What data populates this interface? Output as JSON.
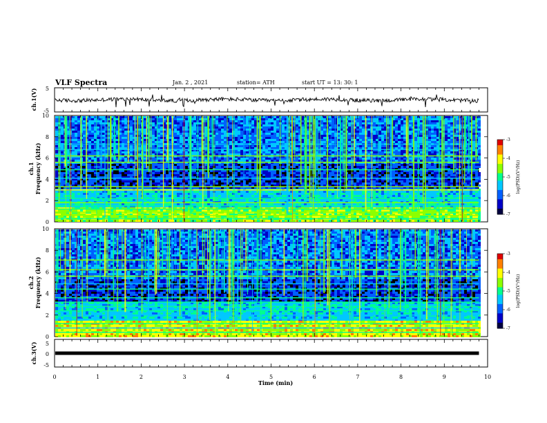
{
  "header": {
    "title": "VLF Spectra",
    "date": "Jan. 2 , 2021",
    "station": "station= ATH",
    "start": "start UT = 13: 30: 1"
  },
  "colors": {
    "waveform": "#000000",
    "spectrogram_background": "#000000",
    "colormap": [
      "#000040",
      "#0000c8",
      "#0060ff",
      "#00c8ff",
      "#00ff90",
      "#8cff00",
      "#ffff00",
      "#ff8000",
      "#e00000"
    ]
  },
  "chart_data": [
    {
      "id": "ch1_waveform",
      "type": "line",
      "ylabel": "ch.1(V)",
      "ylim": [
        -5,
        5
      ],
      "yticks": [
        "5",
        "-5"
      ],
      "xlim": [
        0,
        10
      ],
      "waveform_baseline": 0,
      "waveform_end_min": 9.8,
      "series": [
        {
          "values_note": "noisy VLF waveform near 0 V with spikes"
        }
      ]
    },
    {
      "id": "ch1_spectrogram",
      "type": "heatmap",
      "ylabel": "ch.1\nFrequency (kHz)",
      "ylabel_lines": [
        "ch.1",
        "Frequency (kHz)"
      ],
      "ylim": [
        0,
        10
      ],
      "yticks": [
        "0",
        "2",
        "4",
        "6",
        "8",
        "10"
      ],
      "xlim": [
        0,
        10
      ],
      "data_end_min": 9.8,
      "colorbar": {
        "label": "log(PSD)(V²/Hz)",
        "range": [
          -7,
          -3
        ],
        "ticks": [
          "-3",
          "-4",
          "-5",
          "-6",
          "-7"
        ]
      },
      "bands_khz": [
        0.3,
        0.6,
        0.9,
        1.2,
        1.5,
        1.8,
        2.2,
        3.0,
        3.3,
        4.1,
        4.9,
        5.6,
        6.2,
        6.8,
        7.3
      ]
    },
    {
      "id": "ch2_spectrogram",
      "type": "heatmap",
      "ylabel_lines": [
        "ch.2",
        "Frequency (kHz)"
      ],
      "ylim": [
        0,
        10
      ],
      "yticks": [
        "0",
        "2",
        "4",
        "6",
        "8",
        "10"
      ],
      "xlim": [
        0,
        10
      ],
      "data_end_min": 9.8,
      "colorbar": {
        "label": "log(PSD)(V²/Hz)",
        "range": [
          -7,
          -3
        ],
        "ticks": [
          "-3",
          "-4",
          "-5",
          "-6",
          "-7"
        ]
      },
      "bands_khz": [
        0.4,
        0.8,
        1.2,
        1.6,
        2.0,
        2.4,
        2.8,
        3.2,
        3.6,
        4.4,
        4.9,
        5.6,
        6.2,
        7.1
      ]
    },
    {
      "id": "ch3_waveform",
      "type": "line",
      "ylabel": "ch.3(V)",
      "ylim": [
        -5,
        5
      ],
      "yticks": [
        "5",
        "0",
        "-5"
      ],
      "xlim": [
        0,
        10
      ],
      "waveform_baseline": 0,
      "waveform_end_min": 9.8,
      "series": [
        {
          "values_note": "flat saturated trace around 0 V"
        }
      ]
    }
  ],
  "x_axis": {
    "label": "Time (min)",
    "ticks": [
      "0",
      "1",
      "2",
      "3",
      "4",
      "5",
      "6",
      "7",
      "8",
      "9",
      "10"
    ],
    "range": [
      0,
      10
    ]
  }
}
